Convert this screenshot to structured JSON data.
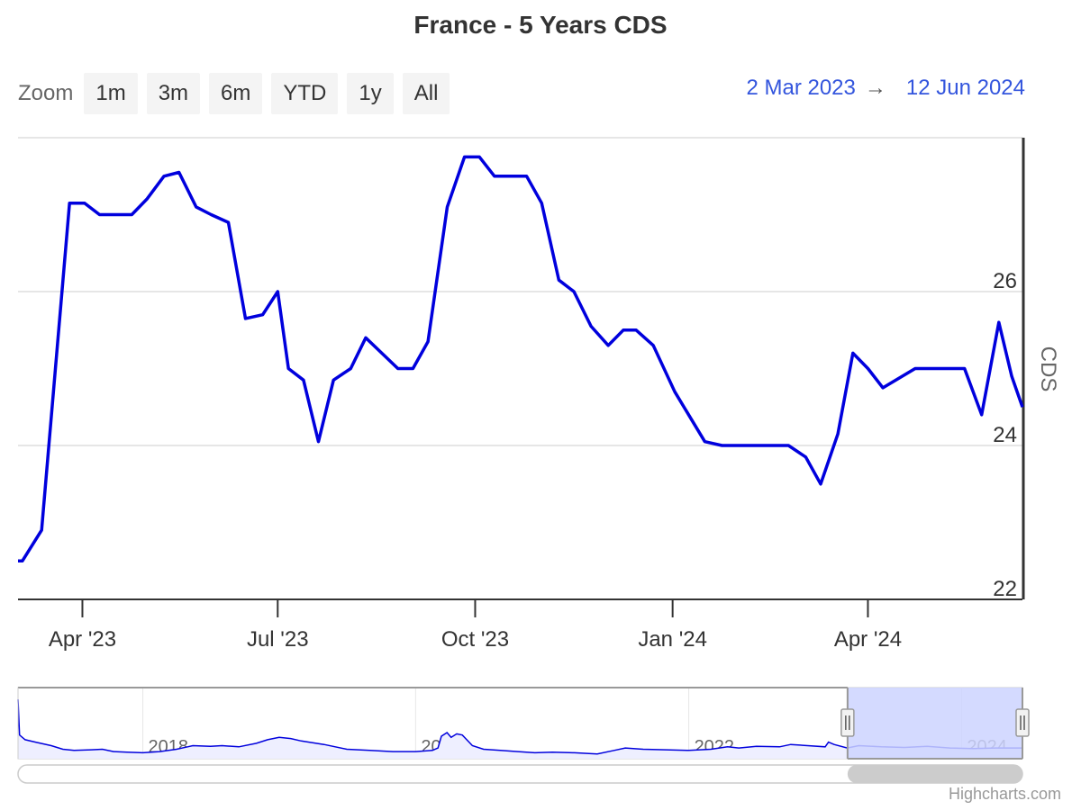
{
  "title": "France - 5 Years CDS",
  "zoom": {
    "label": "Zoom",
    "buttons": [
      "1m",
      "3m",
      "6m",
      "YTD",
      "1y",
      "All"
    ]
  },
  "range": {
    "from": "2 Mar 2023",
    "arrow": "→",
    "to": "12 Jun 2024"
  },
  "credits": "Highcharts.com",
  "colors": {
    "series": "#0000dd",
    "navigator_mask": "#ccd3ff",
    "navigator_fill": "#eeefff"
  },
  "chart_data": {
    "type": "line",
    "title": "France - 5 Years CDS",
    "ylabel": "CDS",
    "ylim": [
      22,
      28
    ],
    "yticks": [
      22,
      24,
      26
    ],
    "xlim": [
      "2023-03-02",
      "2024-06-12"
    ],
    "xticks": [
      {
        "date": "2023-04-01",
        "label": "Apr '23"
      },
      {
        "date": "2023-07-01",
        "label": "Jul '23"
      },
      {
        "date": "2023-10-01",
        "label": "Oct '23"
      },
      {
        "date": "2024-01-01",
        "label": "Jan '24"
      },
      {
        "date": "2024-04-01",
        "label": "Apr '24"
      }
    ],
    "grid": true,
    "legend": "none",
    "series": [
      {
        "values": [
          [
            "2023-03-02",
            22.5
          ],
          [
            "2023-03-04",
            22.5
          ],
          [
            "2023-03-13",
            22.9
          ],
          [
            "2023-03-26",
            27.15
          ],
          [
            "2023-04-02",
            27.15
          ],
          [
            "2023-04-09",
            27.0
          ],
          [
            "2023-04-24",
            27.0
          ],
          [
            "2023-05-01",
            27.2
          ],
          [
            "2023-05-09",
            27.5
          ],
          [
            "2023-05-16",
            27.55
          ],
          [
            "2023-05-24",
            27.1
          ],
          [
            "2023-05-31",
            27.0
          ],
          [
            "2023-06-08",
            26.9
          ],
          [
            "2023-06-16",
            25.65
          ],
          [
            "2023-06-24",
            25.7
          ],
          [
            "2023-07-01",
            26.0
          ],
          [
            "2023-07-06",
            25.0
          ],
          [
            "2023-07-13",
            24.85
          ],
          [
            "2023-07-20",
            24.05
          ],
          [
            "2023-07-27",
            24.85
          ],
          [
            "2023-08-04",
            25.0
          ],
          [
            "2023-08-11",
            25.4
          ],
          [
            "2023-08-26",
            25.0
          ],
          [
            "2023-09-02",
            25.0
          ],
          [
            "2023-09-09",
            25.35
          ],
          [
            "2023-09-18",
            27.1
          ],
          [
            "2023-09-26",
            27.75
          ],
          [
            "2023-10-03",
            27.75
          ],
          [
            "2023-10-10",
            27.5
          ],
          [
            "2023-10-25",
            27.5
          ],
          [
            "2023-11-01",
            27.15
          ],
          [
            "2023-11-09",
            26.15
          ],
          [
            "2023-11-16",
            26.0
          ],
          [
            "2023-11-24",
            25.55
          ],
          [
            "2023-12-02",
            25.3
          ],
          [
            "2023-12-09",
            25.5
          ],
          [
            "2023-12-15",
            25.5
          ],
          [
            "2023-12-23",
            25.3
          ],
          [
            "2024-01-02",
            24.7
          ],
          [
            "2024-01-16",
            24.05
          ],
          [
            "2024-01-24",
            24.0
          ],
          [
            "2024-02-17",
            24.0
          ],
          [
            "2024-02-24",
            24.0
          ],
          [
            "2024-03-03",
            23.85
          ],
          [
            "2024-03-10",
            23.5
          ],
          [
            "2024-03-18",
            24.15
          ],
          [
            "2024-03-25",
            25.2
          ],
          [
            "2024-04-01",
            25.0
          ],
          [
            "2024-04-08",
            24.75
          ],
          [
            "2024-04-23",
            25.0
          ],
          [
            "2024-05-01",
            25.0
          ],
          [
            "2024-05-16",
            25.0
          ],
          [
            "2024-05-24",
            24.4
          ],
          [
            "2024-06-01",
            25.6
          ],
          [
            "2024-06-07",
            24.9
          ],
          [
            "2024-06-12",
            24.5
          ]
        ]
      }
    ],
    "navigator": {
      "xlim": [
        "2017-02-01",
        "2024-06-12"
      ],
      "ylim": [
        20,
        80
      ],
      "xticks": [
        {
          "date": "2018-01-01",
          "label": "2018"
        },
        {
          "date": "2020-01-01",
          "label": "2020"
        },
        {
          "date": "2022-01-01",
          "label": "2022"
        },
        {
          "date": "2024-01-01",
          "label": "2024"
        }
      ],
      "selected": [
        "2023-03-02",
        "2024-06-12"
      ],
      "values": [
        [
          "2017-02-01",
          70
        ],
        [
          "2017-02-05",
          40
        ],
        [
          "2017-02-20",
          36
        ],
        [
          "2017-03-20",
          34
        ],
        [
          "2017-05-01",
          31
        ],
        [
          "2017-06-01",
          28
        ],
        [
          "2017-07-01",
          27
        ],
        [
          "2017-08-15",
          27.5
        ],
        [
          "2017-09-15",
          28
        ],
        [
          "2017-10-15",
          26
        ],
        [
          "2017-11-20",
          25.5
        ],
        [
          "2018-01-01",
          25
        ],
        [
          "2018-02-15",
          26
        ],
        [
          "2018-04-01",
          28
        ],
        [
          "2018-05-01",
          30
        ],
        [
          "2018-05-15",
          31
        ],
        [
          "2018-07-01",
          30.5
        ],
        [
          "2018-08-01",
          31
        ],
        [
          "2018-09-15",
          30
        ],
        [
          "2018-11-01",
          33
        ],
        [
          "2018-12-01",
          36
        ],
        [
          "2019-01-01",
          38
        ],
        [
          "2019-02-01",
          37
        ],
        [
          "2019-03-01",
          35
        ],
        [
          "2019-05-01",
          32
        ],
        [
          "2019-07-01",
          28
        ],
        [
          "2019-09-01",
          27
        ],
        [
          "2019-11-01",
          26
        ],
        [
          "2020-01-01",
          26
        ],
        [
          "2020-02-15",
          27
        ],
        [
          "2020-03-01",
          29
        ],
        [
          "2020-03-10",
          39
        ],
        [
          "2020-03-25",
          42
        ],
        [
          "2020-04-05",
          38
        ],
        [
          "2020-04-20",
          41
        ],
        [
          "2020-05-05",
          40
        ],
        [
          "2020-06-01",
          31
        ],
        [
          "2020-07-01",
          28
        ],
        [
          "2020-08-15",
          27
        ],
        [
          "2020-10-01",
          26
        ],
        [
          "2020-11-15",
          25
        ],
        [
          "2021-01-01",
          25.5
        ],
        [
          "2021-03-01",
          25
        ],
        [
          "2021-05-01",
          24
        ],
        [
          "2021-06-15",
          27
        ],
        [
          "2021-07-15",
          29
        ],
        [
          "2021-09-01",
          28
        ],
        [
          "2021-11-01",
          27.5
        ],
        [
          "2022-01-01",
          27
        ],
        [
          "2022-03-01",
          28
        ],
        [
          "2022-04-15",
          30
        ],
        [
          "2022-05-15",
          29
        ],
        [
          "2022-07-01",
          30.5
        ],
        [
          "2022-09-01",
          30
        ],
        [
          "2022-10-01",
          32
        ],
        [
          "2022-11-15",
          31
        ],
        [
          "2023-01-01",
          30
        ],
        [
          "2023-01-10",
          34
        ],
        [
          "2023-01-25",
          32
        ],
        [
          "2023-03-01",
          29
        ],
        [
          "2023-04-01",
          31
        ],
        [
          "2023-06-01",
          30
        ],
        [
          "2023-08-01",
          29.5
        ],
        [
          "2023-10-01",
          30.5
        ],
        [
          "2023-12-01",
          29
        ],
        [
          "2024-02-01",
          28.5
        ],
        [
          "2024-04-01",
          29
        ],
        [
          "2024-06-12",
          29
        ]
      ]
    }
  }
}
